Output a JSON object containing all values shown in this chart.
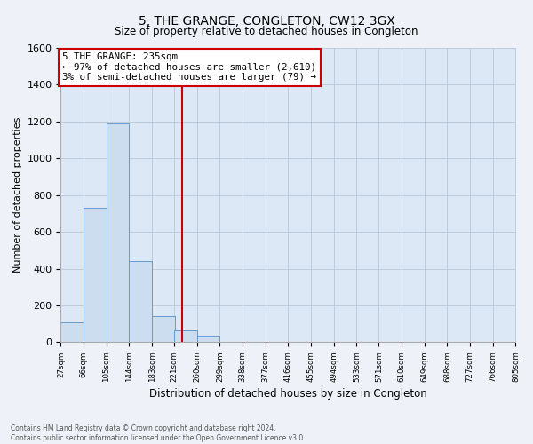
{
  "title": "5, THE GRANGE, CONGLETON, CW12 3GX",
  "subtitle": "Size of property relative to detached houses in Congleton",
  "xlabel": "Distribution of detached houses by size in Congleton",
  "ylabel": "Number of detached properties",
  "bar_edges": [
    27,
    66,
    105,
    144,
    183,
    221,
    260,
    299,
    338,
    377,
    416,
    455,
    494,
    533,
    571,
    610,
    649,
    688,
    727,
    766,
    805
  ],
  "bar_heights": [
    110,
    730,
    1190,
    440,
    140,
    65,
    35,
    0,
    0,
    0,
    0,
    0,
    0,
    0,
    0,
    0,
    0,
    0,
    0,
    0
  ],
  "bar_color": "#ccddf0",
  "bar_edge_color": "#6699cc",
  "property_line_x": 235,
  "property_line_color": "#cc0000",
  "ylim": [
    0,
    1600
  ],
  "annot_line1": "5 THE GRANGE: 235sqm",
  "annot_line2": "← 97% of detached houses are smaller (2,610)",
  "annot_line3": "3% of semi-detached houses are larger (79) →",
  "footer_line1": "Contains HM Land Registry data © Crown copyright and database right 2024.",
  "footer_line2": "Contains public sector information licensed under the Open Government Licence v3.0.",
  "tick_labels": [
    "27sqm",
    "66sqm",
    "105sqm",
    "144sqm",
    "183sqm",
    "221sqm",
    "260sqm",
    "299sqm",
    "338sqm",
    "377sqm",
    "416sqm",
    "455sqm",
    "494sqm",
    "533sqm",
    "571sqm",
    "610sqm",
    "649sqm",
    "688sqm",
    "727sqm",
    "766sqm",
    "805sqm"
  ],
  "background_color": "#eef2f8",
  "plot_background_color": "#dce8f5"
}
